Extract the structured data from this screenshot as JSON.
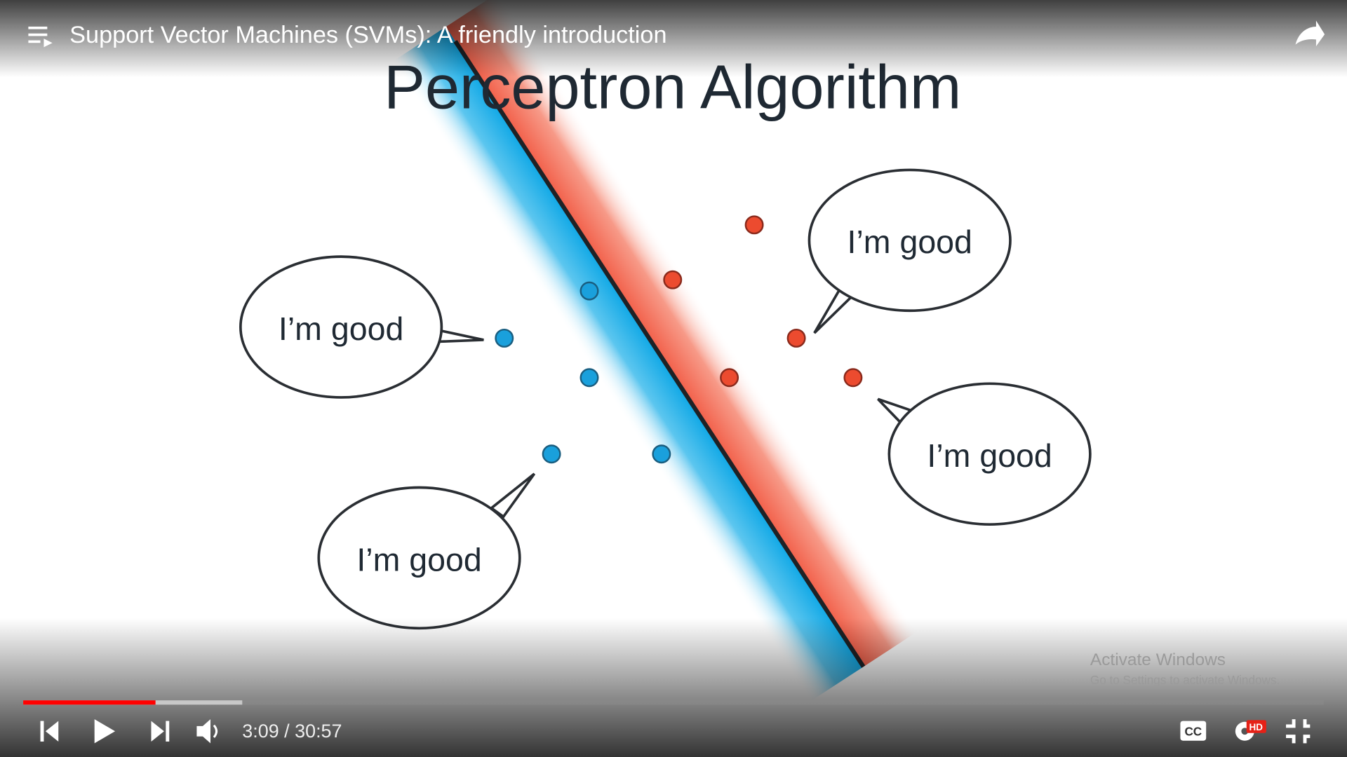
{
  "player": {
    "video_title": "Support Vector Machines (SVMs): A friendly introduction",
    "time_display": "3:09 / 30:57",
    "hd_badge": "HD"
  },
  "slide": {
    "title": "Perceptron Algorithm",
    "bubbles": [
      "I’m good",
      "I’m good",
      "I’m good",
      "I’m good"
    ]
  },
  "watermark": {
    "title": "Activate Windows",
    "subtitle": "Go to Settings to activate Windows."
  }
}
